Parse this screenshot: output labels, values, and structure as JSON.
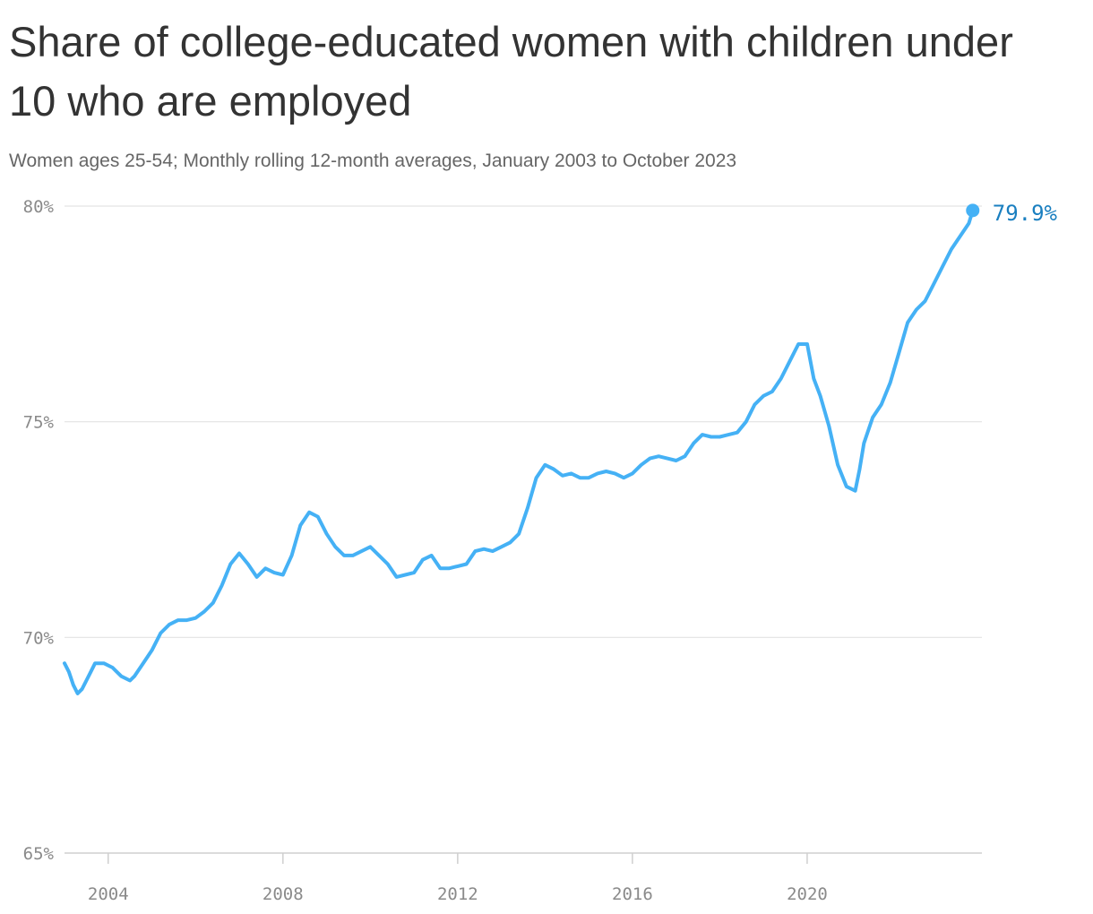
{
  "chart_data": {
    "type": "line",
    "title": "Share of college-educated women with children under 10 who are employed",
    "subtitle": "Women ages 25-54; Monthly rolling 12-month averages, January 2003 to October 2023",
    "ylim": [
      65,
      80
    ],
    "y_ticks": [
      80,
      75,
      70,
      65
    ],
    "y_tick_labels": [
      "80%",
      "75%",
      "70%",
      "65%"
    ],
    "xlim": [
      2003,
      2024
    ],
    "x_ticks": [
      2004,
      2008,
      2012,
      2016,
      2020
    ],
    "x_tick_labels": [
      "2004",
      "2008",
      "2012",
      "2016",
      "2020"
    ],
    "grid": "horizontal",
    "line_color": "#45b1f5",
    "label_color": "#1a7fc0",
    "series": [
      {
        "x": [
          2003.0,
          2003.1,
          2003.2,
          2003.3,
          2003.4,
          2003.5,
          2003.6,
          2003.7,
          2003.8,
          2003.9,
          2004.1,
          2004.3,
          2004.5,
          2004.6,
          2004.8,
          2005.0,
          2005.2,
          2005.4,
          2005.6,
          2005.8,
          2006.0,
          2006.2,
          2006.4,
          2006.6,
          2006.8,
          2007.0,
          2007.2,
          2007.4,
          2007.6,
          2007.8,
          2008.0,
          2008.2,
          2008.4,
          2008.6,
          2008.8,
          2009.0,
          2009.2,
          2009.4,
          2009.6,
          2009.8,
          2010.0,
          2010.2,
          2010.4,
          2010.6,
          2010.8,
          2011.0,
          2011.2,
          2011.4,
          2011.6,
          2011.8,
          2012.0,
          2012.2,
          2012.4,
          2012.6,
          2012.8,
          2013.0,
          2013.2,
          2013.4,
          2013.6,
          2013.8,
          2014.0,
          2014.2,
          2014.4,
          2014.6,
          2014.8,
          2015.0,
          2015.2,
          2015.4,
          2015.6,
          2015.8,
          2016.0,
          2016.2,
          2016.4,
          2016.6,
          2016.8,
          2017.0,
          2017.2,
          2017.4,
          2017.6,
          2017.8,
          2018.0,
          2018.2,
          2018.4,
          2018.6,
          2018.8,
          2019.0,
          2019.2,
          2019.4,
          2019.6,
          2019.8,
          2020.0,
          2020.15,
          2020.3,
          2020.5,
          2020.7,
          2020.9,
          2021.1,
          2021.2,
          2021.3,
          2021.5,
          2021.7,
          2021.9,
          2022.1,
          2022.3,
          2022.5,
          2022.7,
          2022.9,
          2023.1,
          2023.3,
          2023.5,
          2023.7,
          2023.79
        ],
        "y": [
          69.4,
          69.2,
          68.9,
          68.7,
          68.8,
          69.0,
          69.2,
          69.4,
          69.4,
          69.4,
          69.3,
          69.1,
          69.0,
          69.1,
          69.4,
          69.7,
          70.1,
          70.3,
          70.4,
          70.4,
          70.45,
          70.6,
          70.8,
          71.2,
          71.7,
          71.95,
          71.7,
          71.4,
          71.6,
          71.5,
          71.45,
          71.9,
          72.6,
          72.9,
          72.8,
          72.4,
          72.1,
          71.9,
          71.9,
          72.0,
          72.1,
          71.9,
          71.7,
          71.4,
          71.45,
          71.5,
          71.8,
          71.9,
          71.6,
          71.6,
          71.65,
          71.7,
          72.0,
          72.05,
          72.0,
          72.1,
          72.2,
          72.4,
          73.0,
          73.7,
          74.0,
          73.9,
          73.75,
          73.8,
          73.7,
          73.7,
          73.8,
          73.85,
          73.8,
          73.7,
          73.8,
          74.0,
          74.15,
          74.2,
          74.15,
          74.1,
          74.2,
          74.5,
          74.7,
          74.65,
          74.65,
          74.7,
          74.75,
          75.0,
          75.4,
          75.6,
          75.7,
          76.0,
          76.4,
          76.8,
          76.8,
          76.0,
          75.6,
          74.9,
          74.0,
          73.5,
          73.4,
          73.9,
          74.5,
          75.1,
          75.4,
          75.9,
          76.6,
          77.3,
          77.6,
          77.8,
          78.2,
          78.6,
          79.0,
          79.3,
          79.6,
          79.9
        ]
      }
    ],
    "end_label": "79.9%"
  }
}
